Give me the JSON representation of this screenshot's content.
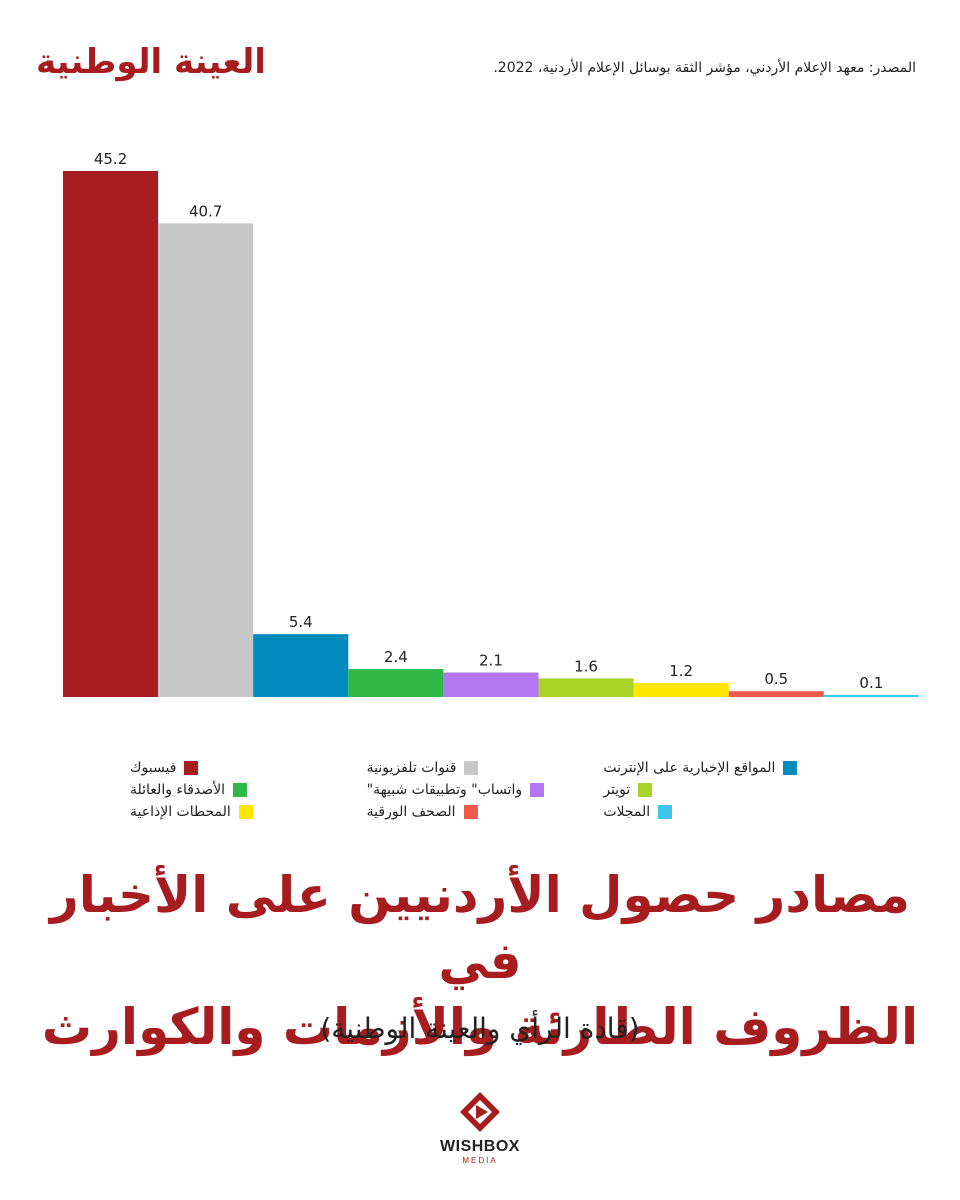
{
  "header": {
    "badge": "العينة الوطنية",
    "source": "المصدر: معهد الإعلام الأردني، مؤشر الثقة بوسائل الإعلام الأردنية، 2022."
  },
  "chart_data": {
    "type": "bar",
    "categories": [
      "فيسبوك",
      "قنوات تلفزيونية",
      "المواقع الإخبارية على الإنترنت",
      "الأصدقاء والعائلة",
      "واتساب\" وتطبيقات شبيهة\"",
      "تويتر",
      "المحطات الإذاعية",
      "الصحف الورقية",
      "المجلات"
    ],
    "values": [
      45.2,
      40.7,
      5.4,
      2.4,
      2.1,
      1.6,
      1.2,
      0.5,
      0.1
    ],
    "value_labels": [
      "45.2",
      "40.7",
      "5.4",
      "2.4",
      "2.1",
      "1.6",
      "1.2",
      "0.5",
      "0.1"
    ],
    "colors": [
      "#a61c1f",
      "#c8c8c8",
      "#008bbd",
      "#2fb847",
      "#b377f2",
      "#a8d42a",
      "#ffe800",
      "#ef5a4c",
      "#3fc6ec"
    ],
    "title": "مصادر حصول الأردنيين على الأخبار في الظروف الطارئة والأزمات والكوارث",
    "subtitle": "(قادة الرأي والعينة الوطنية)",
    "ylim": [
      0,
      45.2
    ],
    "grid": false,
    "legend_position": "bottom"
  },
  "legend": {
    "items": [
      {
        "label": "فيسبوك",
        "color": "#a61c1f"
      },
      {
        "label": "قنوات تلفزيونية",
        "color": "#c8c8c8"
      },
      {
        "label": "المواقع الإخبارية على الإنترنت",
        "color": "#008bbd"
      },
      {
        "label": "الأصدقاء والعائلة",
        "color": "#2fb847"
      },
      {
        "label": "واتساب\" وتطبيقات شبيهة\"",
        "color": "#b377f2"
      },
      {
        "label": "تويتر",
        "color": "#a8d42a"
      },
      {
        "label": "المحطات الإذاعية",
        "color": "#ffe800"
      },
      {
        "label": "الصحف الورقية",
        "color": "#ef5a4c"
      },
      {
        "label": "المجلات",
        "color": "#3fc6ec"
      }
    ]
  },
  "footer": {
    "title_line1": "مصادر حصول الأردنيين على الأخبار في",
    "title_line2": "الظروف الطارئة والأزمات والكوارث",
    "subtitle": "(قادة الرأي والعينة الوطنية)",
    "logo_name": "WISHBOX",
    "logo_sub": "MEDIA"
  }
}
